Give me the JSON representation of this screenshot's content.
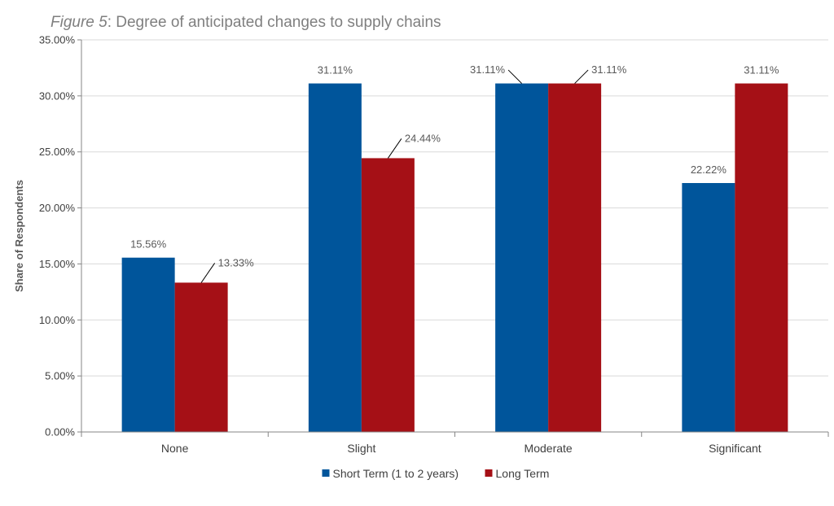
{
  "chart_data": {
    "type": "bar",
    "title_prefix": "Figure 5",
    "title": ": Degree of anticipated changes to supply chains",
    "xlabel": "",
    "ylabel": "Share of Respondents",
    "ylim": [
      0,
      35
    ],
    "ytick_step": 5,
    "ytick_labels": [
      "0.00%",
      "5.00%",
      "10.00%",
      "15.00%",
      "20.00%",
      "25.00%",
      "30.00%",
      "35.00%"
    ],
    "grid": true,
    "legend_position": "bottom",
    "categories": [
      "None",
      "Slight",
      "Moderate",
      "Significant"
    ],
    "series": [
      {
        "name": "Short Term (1 to 2 years)",
        "color": "#00559b",
        "values": [
          15.56,
          31.11,
          31.11,
          22.22
        ],
        "labels": [
          "15.56%",
          "31.11%",
          "31.11%",
          "22.22%"
        ]
      },
      {
        "name": "Long Term",
        "color": "#a51016",
        "values": [
          13.33,
          24.44,
          31.11,
          31.11
        ],
        "labels": [
          "13.33%",
          "24.44%",
          "31.11%",
          "31.11%"
        ]
      }
    ]
  }
}
